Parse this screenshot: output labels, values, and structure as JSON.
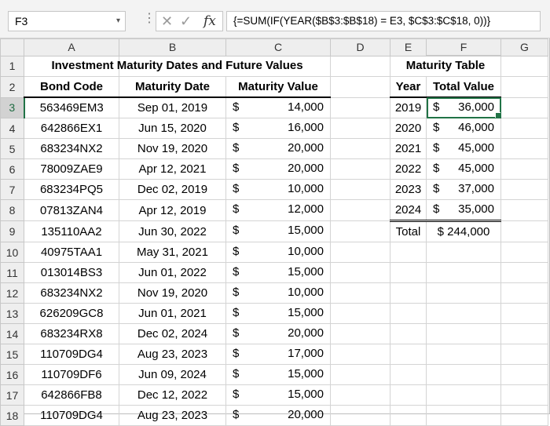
{
  "name_box": "F3",
  "formula": "{=SUM(IF(YEAR($B$3:$B$18) = E3, $C$3:$C$18, 0))}",
  "icons": {
    "cancel": "cross-icon",
    "enter": "check-icon",
    "function": "fx-icon",
    "dropdown": "chevron-down-icon"
  },
  "col_headers": [
    "A",
    "B",
    "C",
    "D",
    "E",
    "F",
    "G"
  ],
  "row_headers": [
    "1",
    "2",
    "3",
    "4",
    "5",
    "6",
    "7",
    "8",
    "9",
    "10",
    "11",
    "12",
    "13",
    "14",
    "15",
    "16",
    "17",
    "18"
  ],
  "sheet": {
    "title": "Investment Maturity Dates and Future Values",
    "headers": {
      "bond_code": "Bond Code",
      "maturity_date": "Maturity Date",
      "maturity_value": "Maturity Value"
    },
    "currency": "$",
    "bonds": [
      {
        "code": "563469EM3",
        "date": "Sep 01, 2019",
        "value": "14,000"
      },
      {
        "code": "642866EX1",
        "date": "Jun 15, 2020",
        "value": "16,000"
      },
      {
        "code": "683234NX2",
        "date": "Nov 19, 2020",
        "value": "20,000"
      },
      {
        "code": "78009ZAE9",
        "date": "Apr 12, 2021",
        "value": "20,000"
      },
      {
        "code": "683234PQ5",
        "date": "Dec 02, 2019",
        "value": "10,000"
      },
      {
        "code": "07813ZAN4",
        "date": "Apr 12, 2019",
        "value": "12,000"
      },
      {
        "code": "135110AA2",
        "date": "Jun 30, 2022",
        "value": "15,000"
      },
      {
        "code": "40975TAA1",
        "date": "May 31, 2021",
        "value": "10,000"
      },
      {
        "code": "013014BS3",
        "date": "Jun 01, 2022",
        "value": "15,000"
      },
      {
        "code": "683234NX2",
        "date": "Nov 19, 2020",
        "value": "10,000"
      },
      {
        "code": "626209GC8",
        "date": "Jun 01, 2021",
        "value": "15,000"
      },
      {
        "code": "683234RX8",
        "date": "Dec 02, 2024",
        "value": "20,000"
      },
      {
        "code": "110709DG4",
        "date": "Aug 23, 2023",
        "value": "17,000"
      },
      {
        "code": "110709DF6",
        "date": "Jun 09, 2024",
        "value": "15,000"
      },
      {
        "code": "642866FB8",
        "date": "Dec 12, 2022",
        "value": "15,000"
      },
      {
        "code": "110709DG4",
        "date": "Aug 23, 2023",
        "value": "20,000"
      }
    ],
    "maturity_table": {
      "title": "Maturity Table",
      "headers": {
        "year": "Year",
        "total": "Total Value"
      },
      "rows": [
        {
          "year": "2019",
          "value": "36,000"
        },
        {
          "year": "2020",
          "value": "46,000"
        },
        {
          "year": "2021",
          "value": "45,000"
        },
        {
          "year": "2022",
          "value": "45,000"
        },
        {
          "year": "2023",
          "value": "37,000"
        },
        {
          "year": "2024",
          "value": "35,000"
        }
      ],
      "total_label": "Total",
      "total_value": "$ 244,000"
    }
  }
}
